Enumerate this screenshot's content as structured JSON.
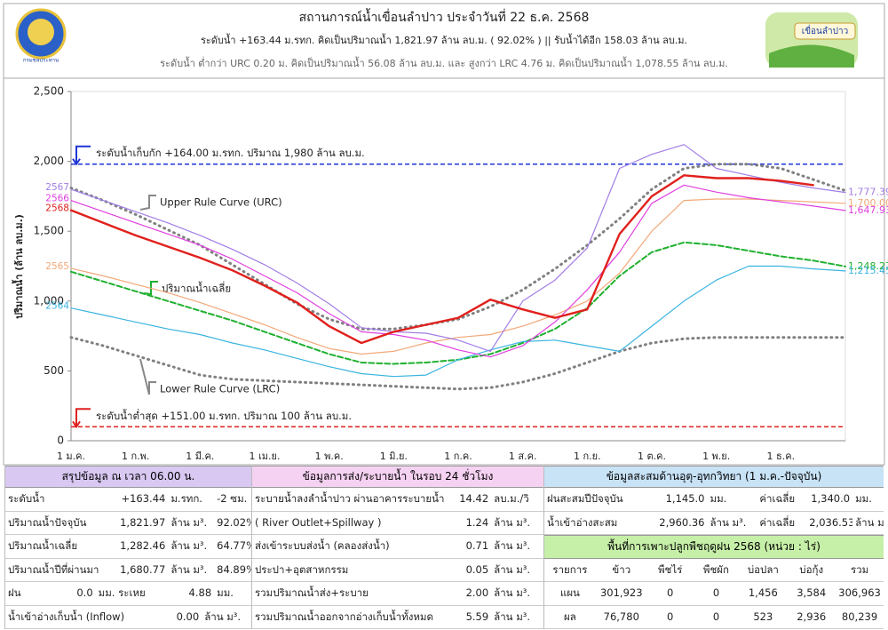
{
  "header": {
    "title": "สถานการณ์น้ำเขื่อนลำปาว ประจำวันที่ 22 ธ.ค. 2568",
    "line1": "ระดับน้ำ +163.44 ม.รทก.  คิดเป็นปริมาณน้ำ 1,821.97 ล้าน ลบ.ม. ( 92.02% )  || รับน้ำได้อีก 158.03 ล้าน ลบ.ม.",
    "line2": "ระดับน้ำ ต่ำกว่า URC 0.20 ม. คิดเป็นปริมาณน้ำ 56.08 ล้าน ลบ.ม. และ สูงกว่า LRC 4.76 ม. คิดเป็นปริมาณน้ำ 1,078.55 ล้าน ลบ.ม.",
    "logo_left": "กรมชลประทาน",
    "logo_right": "เขื่อนลำปาว"
  },
  "chart_data": {
    "type": "line",
    "y_label": "ปริมาณน้ำ (ล้าน ลบ.ม.)",
    "categories": [
      "1 ม.ค.",
      null,
      "1 ก.พ.",
      null,
      "1 มี.ค.",
      null,
      "1 เม.ย.",
      null,
      "1 พ.ค.",
      null,
      "1 มิ.ย.",
      null,
      "1 ก.ค.",
      null,
      "1 ส.ค.",
      null,
      "1 ก.ย.",
      null,
      "1 ต.ค.",
      null,
      "1 พ.ย.",
      null,
      "1 ธ.ค.",
      null,
      null
    ],
    "ylim": [
      0,
      2500
    ],
    "yticks": [
      0,
      500,
      {
        "value": 1000,
        "label": "1,000"
      },
      {
        "value": 1500,
        "label": "1,500"
      },
      {
        "value": 2000,
        "label": "2,000"
      },
      {
        "value": 2500,
        "label": "2,500"
      }
    ],
    "grid": false,
    "reference_lines": [
      {
        "value": 1980,
        "label": "ระดับน้ำเก็บกัก +164.00 ม.รทก. ปริมาณ 1,980 ล้าน ลบ.ม.",
        "color": "#1f35d6"
      },
      {
        "value": 100,
        "label": "ระดับน้ำต่ำสุด +151.00 ม.รทก. ปริมาณ 100 ล้าน ลบ.ม.",
        "color": "#e02020"
      }
    ],
    "series": [
      {
        "name": "2568",
        "color": "#e0201c",
        "line": "solid",
        "values": [
          1650,
          1560,
          1470,
          1390,
          1310,
          1220,
          1110,
          990,
          820,
          700,
          780,
          830,
          880,
          1010,
          940,
          880,
          940,
          1480,
          1750,
          1900,
          1880,
          1880,
          1860,
          1830,
          null
        ]
      },
      {
        "name": "2567",
        "color": "#a27ee6",
        "line": "solid",
        "values": [
          1800,
          1720,
          1640,
          1560,
          1470,
          1370,
          1260,
          1130,
          980,
          810,
          780,
          770,
          720,
          640,
          1000,
          1150,
          1380,
          1950,
          2050,
          2120,
          1950,
          1900,
          1850,
          1810,
          1777.39
        ],
        "value_labels": [
          null,
          null,
          null,
          null,
          null,
          null,
          null,
          null,
          null,
          null,
          null,
          null,
          null,
          null,
          null,
          null,
          null,
          null,
          null,
          null,
          null,
          null,
          null,
          null,
          "1,777.39"
        ]
      },
      {
        "name": "2566",
        "color": "#e040e0",
        "line": "solid",
        "values": [
          1720,
          1640,
          1560,
          1480,
          1400,
          1300,
          1180,
          1060,
          910,
          780,
          760,
          720,
          650,
          600,
          680,
          850,
          1080,
          1350,
          1700,
          1830,
          1780,
          1740,
          1710,
          1680,
          1647.93
        ],
        "value_labels": [
          null,
          null,
          null,
          null,
          null,
          null,
          null,
          null,
          null,
          null,
          null,
          null,
          null,
          null,
          null,
          null,
          null,
          null,
          null,
          null,
          null,
          null,
          null,
          null,
          "1,647.93"
        ]
      },
      {
        "name": "2565",
        "color": "#f2a878",
        "line": "solid",
        "values": [
          1235,
          1180,
          1120,
          1060,
          990,
          910,
          830,
          740,
          660,
          620,
          640,
          700,
          740,
          760,
          820,
          900,
          1000,
          1200,
          1500,
          1720,
          1730,
          1730,
          1720,
          1710,
          1700
        ],
        "value_labels": [
          null,
          null,
          null,
          null,
          null,
          null,
          null,
          null,
          null,
          null,
          null,
          null,
          null,
          null,
          null,
          null,
          null,
          null,
          null,
          null,
          null,
          null,
          null,
          null,
          "1,700.00"
        ]
      },
      {
        "name": "2564",
        "color": "#3ab4e0",
        "line": "solid",
        "values": [
          950,
          900,
          850,
          800,
          760,
          700,
          650,
          590,
          530,
          480,
          460,
          470,
          580,
          650,
          710,
          720,
          680,
          640,
          820,
          1000,
          1150,
          1250,
          1250,
          1230,
          1215.45
        ],
        "value_labels": [
          null,
          null,
          null,
          null,
          null,
          null,
          null,
          null,
          null,
          null,
          null,
          null,
          null,
          null,
          null,
          null,
          null,
          null,
          null,
          null,
          null,
          null,
          null,
          null,
          "1,215.45"
        ]
      },
      {
        "name": "ปริมาณน้ำเฉลี่ย",
        "color": "#20b030",
        "line": "dashed",
        "values": [
          1210,
          1140,
          1070,
          1000,
          930,
          860,
          780,
          700,
          620,
          560,
          550,
          560,
          580,
          620,
          700,
          800,
          950,
          1180,
          1350,
          1420,
          1400,
          1360,
          1320,
          1290,
          1248.27
        ],
        "value_labels": [
          null,
          null,
          null,
          null,
          null,
          null,
          null,
          null,
          null,
          null,
          null,
          null,
          null,
          null,
          null,
          null,
          null,
          null,
          null,
          null,
          null,
          null,
          null,
          null,
          "1,248.27"
        ]
      },
      {
        "name": "Upper Rule Curve (URC)",
        "color": "#808080",
        "line": "dotted",
        "values": [
          1810,
          1720,
          1620,
          1510,
          1400,
          1260,
          1120,
          980,
          870,
          800,
          800,
          830,
          870,
          960,
          1080,
          1230,
          1400,
          1590,
          1800,
          1950,
          1980,
          1980,
          1950,
          1870,
          1790
        ]
      },
      {
        "name": "Lower Rule Curve (LRC)",
        "color": "#808080",
        "line": "dotted",
        "values": [
          740,
          680,
          610,
          540,
          470,
          440,
          430,
          420,
          410,
          400,
          390,
          380,
          370,
          380,
          420,
          480,
          560,
          640,
          700,
          730,
          740,
          740,
          740,
          740,
          740
        ]
      }
    ]
  },
  "tables": [
    {
      "title": "สรุปข้อมูล ณ เวลา 06.00 น.",
      "color": "#d8c8f2",
      "rows": [
        [
          "ระดับน้ำ",
          "+163.44",
          "ม.รทก.",
          "-2 ซม."
        ],
        [
          "ปริมาณน้ำปัจจุบัน",
          "1,821.97",
          "ล้าน ม³.",
          "92.02%"
        ],
        [
          "ปริมาณน้ำเฉลี่ย",
          "1,282.46",
          "ล้าน ม³.",
          "64.77%"
        ],
        [
          "ปริมาณน้ำปีที่ผ่านมา",
          "1,680.77",
          "ล้าน ม³.",
          "84.89%"
        ],
        [
          "ฝน",
          "0.0",
          "มม. ระเหย",
          "4.88",
          "มม."
        ],
        [
          "น้ำเข้าอ่างเก็บน้ำ (Inflow)",
          "0.00",
          "ล้าน ม³."
        ]
      ]
    },
    {
      "title": "ข้อมูลการส่ง/ระบายน้ำ ในรอบ 24 ชั่วโมง",
      "color": "#f6d2f2",
      "rows": [
        [
          "ระบายน้ำลงลำน้ำปาว ผ่านอาคารระบายน้ำ",
          "14.42",
          "ลบ.ม./วิ"
        ],
        [
          "( River Outlet+Spillway )",
          "1.24",
          "ล้าน ม³."
        ],
        [
          "ส่งเข้าระบบส่งน้ำ (คลองส่งน้ำ)",
          "0.71",
          "ล้าน ม³."
        ],
        [
          "ประปา+อุตสาหกรรม",
          "0.05",
          "ล้าน ม³."
        ],
        [
          "รวมปริมาณน้ำส่ง+ระบาย",
          "2.00",
          "ล้าน ม³."
        ],
        [
          "รวมปริมาณน้ำออกจากอ่างเก็บน้ำทั้งหมด",
          "5.59",
          "ล้าน ม³."
        ]
      ]
    },
    {
      "title": "ข้อมูลสะสมด้านอุตุ-อุทกวิทยา (1 ม.ค.-ปัจจุบัน)",
      "color": "#c8e2f6",
      "rows": [
        [
          "ฝนสะสมปีปัจจุบัน",
          "1,145.0",
          "มม.",
          "ค่าเฉลี่ย",
          "1,340.0",
          "มม."
        ],
        [
          "น้ำเข้าอ่างสะสม",
          "2,960.36",
          "ล้าน ม³.",
          "ค่าเฉลี่ย",
          "2,036.53",
          "ล้าน ม³."
        ]
      ],
      "subtitle": "พื้นที่การเพาะปลูกพืชฤดูฝน 2568 (หน่วย : ไร่)",
      "subtitle_color": "#c6efa8",
      "columns": [
        "รายการ",
        "ข้าว",
        "พืชไร่",
        "พืชผัก",
        "บ่อปลา",
        "บ่อกุ้ง",
        "รวม"
      ],
      "subrows": [
        [
          "แผน",
          "301,923",
          "0",
          "0",
          "1,456",
          "3,584",
          "306,963"
        ],
        [
          "ผล",
          "76,780",
          "0",
          "0",
          "523",
          "2,936",
          "80,239"
        ]
      ]
    }
  ]
}
